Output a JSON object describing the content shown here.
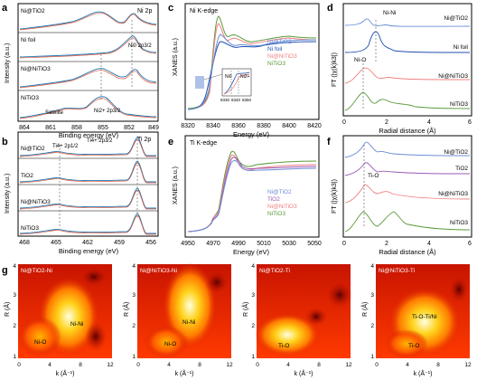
{
  "figure": {
    "panel_letters": [
      "a",
      "b",
      "c",
      "d",
      "e",
      "f",
      "g"
    ]
  },
  "panel_a": {
    "letter": "a",
    "corner_label": "Ni 2p",
    "xlabel": "Binding energy (eV)",
    "ylabel": "Intensity (a.u.)",
    "x_ticks": [
      "864",
      "861",
      "858",
      "855",
      "852",
      "849"
    ],
    "trace_labels": [
      "Ni@TiO2",
      "Ni foil",
      "Ni@NiTiO3",
      "NiTiO3"
    ],
    "annotations": {
      "ni0": "Ni0 2p3/2",
      "ni2": "Ni2+ 2p3/2",
      "satellite": "Satelite"
    },
    "colors": {
      "raw": "#1f77b4",
      "fit": "#e05a3c",
      "envelope": "#444444"
    }
  },
  "panel_b": {
    "letter": "b",
    "corner_label": "Ti 2p",
    "xlabel": "Binding energy (eV)",
    "ylabel": "Intensity (a.u.)",
    "x_ticks": [
      "468",
      "465",
      "462",
      "459",
      "456"
    ],
    "trace_labels": [
      "Ni@TiO2",
      "TiO2",
      "Ni@NiTiO3",
      "NiTiO3"
    ],
    "annotations": {
      "ti12": "Ti4+ 2p1/2",
      "ti32": "Ti4+ 2p3/2"
    }
  },
  "panel_c": {
    "letter": "c",
    "corner_label": "Ni K-edge",
    "xlabel": "Energy (eV)",
    "ylabel": "XANES (a.u.)",
    "x_ticks": [
      "8320",
      "8340",
      "8360",
      "8380",
      "8400",
      "8420"
    ],
    "legend": [
      {
        "label": "Ni@TiO2",
        "color": "#6b8ed6"
      },
      {
        "label": "Ni foil",
        "color": "#1f4fb0"
      },
      {
        "label": "Ni@NiTiO3",
        "color": "#f08080"
      },
      {
        "label": "NiTiO3",
        "color": "#5a9a3a"
      }
    ],
    "inset": {
      "labels": [
        "Ni0",
        "Ni2+"
      ],
      "ticks": [
        "8330",
        "8340",
        "8350"
      ]
    }
  },
  "panel_d": {
    "letter": "d",
    "xlabel": "Radial distance (Å)",
    "ylabel": "FT (|χ(k)k3|)",
    "x_ticks": [
      "0",
      "2",
      "4",
      "6"
    ],
    "trace_labels": [
      "Ni@TiO2",
      "Ni foil",
      "Ni@NiTiO3",
      "NiTiO3"
    ],
    "annotations": {
      "nini": "Ni-Ni",
      "nio": "Ni-O"
    },
    "colors": [
      "#6b8ed6",
      "#1f4fb0",
      "#f08080",
      "#5a9a3a"
    ]
  },
  "panel_e": {
    "letter": "e",
    "corner_label": "Ti K-edge",
    "xlabel": "Energy (eV)",
    "ylabel": "XANES (a.u.)",
    "x_ticks": [
      "4950",
      "4970",
      "4990",
      "5010",
      "5030",
      "5050"
    ],
    "legend": [
      {
        "label": "Ni@TiO2",
        "color": "#6b8ed6"
      },
      {
        "label": "TiO2",
        "color": "#9b59b6"
      },
      {
        "label": "Ni@NiTiO3",
        "color": "#f08080"
      },
      {
        "label": "NiTiO3",
        "color": "#5a9a3a"
      }
    ]
  },
  "panel_f": {
    "letter": "f",
    "xlabel": "Radial distance (Å)",
    "ylabel": "FT (|χ(k)k3|)",
    "x_ticks": [
      "0",
      "2",
      "4",
      "6"
    ],
    "trace_labels": [
      "Ni@TiO2",
      "TiO2",
      "Ni@NiTiO3",
      "NiTiO3"
    ],
    "annotations": {
      "tio": "Ti-O"
    },
    "colors": [
      "#6b8ed6",
      "#9b59b6",
      "#f08080",
      "#5a9a3a"
    ]
  },
  "panel_g": {
    "letter": "g",
    "xlabel": "k (Å⁻¹)",
    "ylabel": "R (Å)",
    "x_ticks": [
      "0",
      "4",
      "8",
      "12"
    ],
    "y_ticks": [
      "1",
      "2",
      "3",
      "4"
    ],
    "maps": [
      {
        "title": "Ni@TiO2-Ni",
        "labels": [
          "Ni-Ni",
          "Ni-O"
        ]
      },
      {
        "title": "Ni@NiTiO3-Ni",
        "labels": [
          "Ni-Ni",
          "Ni-O"
        ]
      },
      {
        "title": "Ni@TiO2-Ti",
        "labels": [
          "Ti-O"
        ]
      },
      {
        "title": "Ni@NiTiO3-Ti",
        "labels": [
          "Ti-O-Ti/Ni",
          "Ti-O"
        ]
      }
    ]
  }
}
